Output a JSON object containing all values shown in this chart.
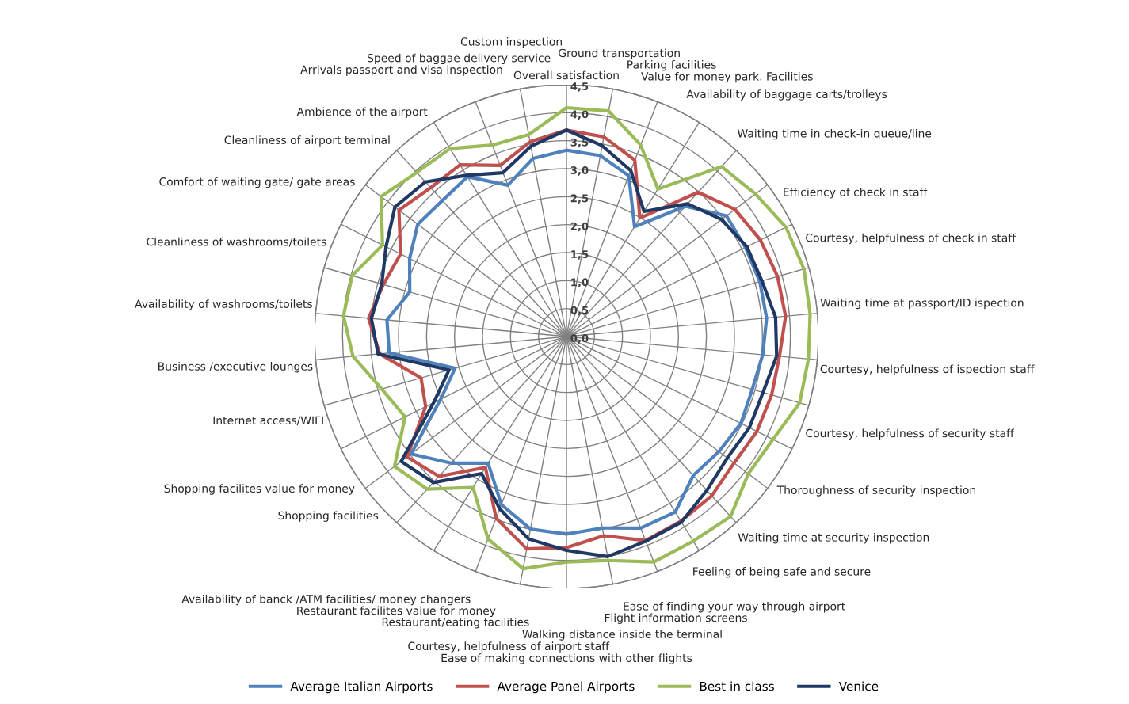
{
  "chart_data": {
    "type": "radar",
    "categories": [
      "Overall satisfaction",
      "Ground transportation",
      "Parking facilities",
      "Value for money park. Facilities",
      "Availability of baggage carts/trolleys",
      "Waiting time in check-in queue/line",
      "Efficiency of check in staff",
      "Courtesy, helpfulness of check in staff",
      "Waiting time at passport/ID ispection",
      "Courtesy, helpfulness of ispection staff",
      "Courtesy, helpfulness of security staff",
      "Thoroughness of security inspection",
      "Waiting time at security inspection",
      "Feeling of being safe and secure",
      "Ease of finding your way through airport",
      "Flight information screens",
      "Walking distance inside the terminal",
      "Ease of making connections with other flights",
      "Courtesy, helpfulness of airport staff",
      "Restaurant/eating facilities",
      "Restaurant facilites value for money",
      "Availability of banck /ATM facilities/ money changers",
      "Shopping facilities",
      "Shopping facilites value for money",
      "Internet access/WIFI",
      "Business /executive lounges",
      "Availability of washrooms/toilets",
      "Cleanliness of washrooms/toilets",
      "Comfort of waiting gate/ gate areas",
      "Cleanliness of airport terminal",
      "Ambience of the airport",
      "Arrivals passport and visa inspection",
      "Speed of baggae delivery service",
      "Custom inspection"
    ],
    "series": [
      {
        "name": "Average Italian Airports",
        "color": "#4f81bd",
        "values": [
          3.33,
          3.29,
          3.08,
          2.31,
          3.15,
          3.58,
          3.57,
          3.59,
          3.59,
          3.52,
          3.45,
          3.48,
          3.41,
          3.36,
          3.69,
          3.67,
          3.48,
          3.53,
          3.5,
          3.22,
          2.66,
          3.06,
          3.48,
          2.51,
          2.07,
          3.18,
          3.22,
          2.91,
          3.13,
          3.33,
          3.29,
          3.36,
          2.9,
          3.24
        ]
      },
      {
        "name": "Average Panel Airports",
        "color": "#c0504d",
        "values": [
          3.69,
          3.63,
          3.38,
          2.49,
          3.49,
          3.77,
          3.87,
          3.92,
          3.93,
          3.82,
          3.81,
          3.8,
          3.75,
          3.85,
          3.88,
          3.91,
          3.62,
          3.77,
          3.86,
          3.48,
          2.75,
          3.38,
          3.57,
          2.81,
          2.7,
          3.35,
          3.55,
          3.4,
          3.31,
          3.75,
          3.6,
          3.61,
          3.28,
          3.54
        ]
      },
      {
        "name": "Best in class",
        "color": "#9bbb59",
        "values": [
          4.09,
          4.1,
          3.67,
          3.1,
          4.11,
          4.23,
          4.38,
          4.41,
          4.37,
          4.34,
          4.33,
          4.12,
          4.07,
          4.35,
          4.3,
          4.32,
          4.07,
          4.03,
          4.22,
          3.88,
          3.17,
          3.69,
          3.85,
          3.22,
          3.43,
          3.83,
          4.0,
          3.98,
          3.67,
          4.15,
          3.97,
          3.95,
          3.67,
          3.67
        ]
      },
      {
        "name": "Venice",
        "color": "#1f3864",
        "values": [
          3.69,
          3.47,
          3.18,
          2.63,
          3.21,
          3.47,
          3.6,
          3.63,
          3.75,
          3.77,
          3.65,
          3.65,
          3.6,
          3.72,
          3.9,
          3.92,
          4.0,
          3.82,
          3.68,
          3.3,
          2.88,
          3.53,
          3.7,
          2.65,
          2.18,
          3.38,
          3.5,
          3.43,
          3.6,
          3.84,
          3.74,
          3.39,
          3.14,
          3.46
        ]
      }
    ],
    "ylim": [
      0,
      4.5
    ],
    "yticks": [
      {
        "value": 0,
        "label": "0,0"
      },
      {
        "value": 0.5,
        "label": "0,5"
      },
      {
        "value": 1,
        "label": "1,0"
      },
      {
        "value": 1.5,
        "label": "1,5"
      },
      {
        "value": 2,
        "label": "2,0"
      },
      {
        "value": 2.5,
        "label": "2,5"
      },
      {
        "value": 3,
        "label": "3,0"
      },
      {
        "value": 3.5,
        "label": "3,5"
      },
      {
        "value": 4,
        "label": "4,0"
      },
      {
        "value": 4.5,
        "label": "4,5"
      }
    ],
    "grid": true,
    "legend": "bottom"
  }
}
